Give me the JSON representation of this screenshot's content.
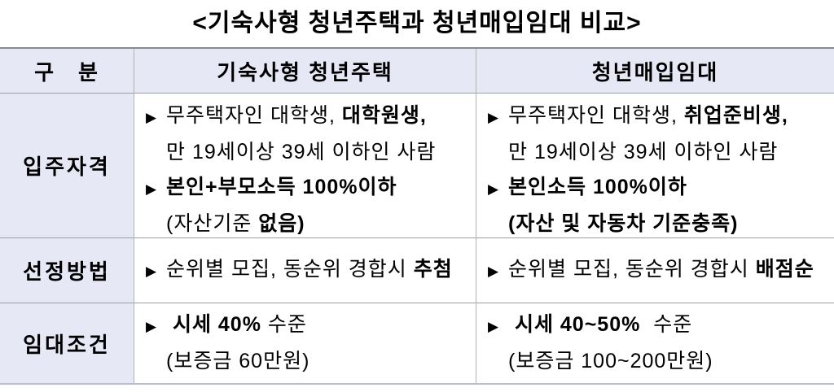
{
  "title": "<기숙사형 청년주택과 청년매입임대 비교>",
  "bullet_glyph": "▶",
  "colors": {
    "header_bg": "#e7e8f6",
    "border_top": "#8a8a8a",
    "border_bottom": "#b9bdd1",
    "row_divider": "#9aa0a6",
    "col_divider": "#b3b3b3"
  },
  "table": {
    "header": [
      "구　분",
      "기숙사형 청년주택",
      "청년매입임대"
    ],
    "rows": [
      {
        "label": "입주자격",
        "cols": [
          {
            "lines": [
              {
                "bullet": true,
                "segs": [
                  {
                    "t": "무주택자인 대학생, ",
                    "b": false
                  },
                  {
                    "t": "대학원생,",
                    "b": true
                  }
                ]
              },
              {
                "bullet": false,
                "segs": [
                  {
                    "t": "만 19세이상 39세 이하인 사람",
                    "b": false
                  }
                ]
              },
              {
                "bullet": true,
                "segs": [
                  {
                    "t": "본인+부모소득 100%이하",
                    "b": true
                  }
                ]
              },
              {
                "bullet": false,
                "segs": [
                  {
                    "t": "(자산기준 ",
                    "b": false
                  },
                  {
                    "t": "없음)",
                    "b": true
                  }
                ]
              }
            ]
          },
          {
            "lines": [
              {
                "bullet": true,
                "segs": [
                  {
                    "t": "무주택자인 대학생, ",
                    "b": false
                  },
                  {
                    "t": "취업준비생,",
                    "b": true
                  }
                ]
              },
              {
                "bullet": false,
                "segs": [
                  {
                    "t": "만 19세이상 39세 이하인 사람",
                    "b": false
                  }
                ]
              },
              {
                "bullet": true,
                "segs": [
                  {
                    "t": "본인소득 100%이하",
                    "b": true
                  }
                ]
              },
              {
                "bullet": false,
                "segs": [
                  {
                    "t": "(자산 및 자동차 기준충족)",
                    "b": true
                  }
                ]
              }
            ]
          }
        ]
      },
      {
        "label": "선정방법",
        "cols": [
          {
            "lines": [
              {
                "bullet": true,
                "segs": [
                  {
                    "t": "순위별 모집, 동순위 경합시 ",
                    "b": false
                  },
                  {
                    "t": "추첨",
                    "b": true
                  }
                ]
              }
            ]
          },
          {
            "lines": [
              {
                "bullet": true,
                "segs": [
                  {
                    "t": "순위별 모집, 동순위 경합시 ",
                    "b": false
                  },
                  {
                    "t": "배점순",
                    "b": true
                  }
                ]
              }
            ]
          }
        ]
      },
      {
        "label": "임대조건",
        "cols": [
          {
            "lines": [
              {
                "bullet": true,
                "segs": [
                  {
                    "t": " 시세 40%",
                    "b": true
                  },
                  {
                    "t": " 수준",
                    "b": false
                  }
                ]
              },
              {
                "bullet": false,
                "segs": [
                  {
                    "t": "(보증금 60만원)",
                    "b": false
                  }
                ]
              }
            ]
          },
          {
            "lines": [
              {
                "bullet": true,
                "segs": [
                  {
                    "t": " 시세 40~50%",
                    "b": true
                  },
                  {
                    "t": "  수준",
                    "b": false
                  }
                ]
              },
              {
                "bullet": false,
                "segs": [
                  {
                    "t": "(보증금 100~200만원)",
                    "b": false
                  }
                ]
              }
            ]
          }
        ]
      }
    ]
  }
}
